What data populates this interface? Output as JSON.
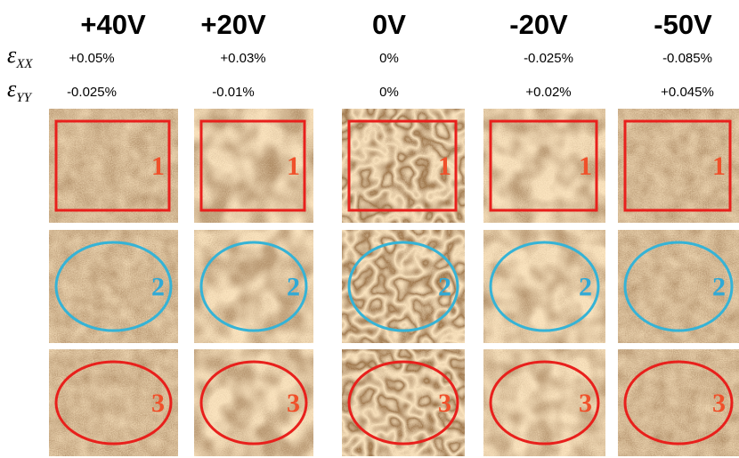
{
  "columns": [
    {
      "voltage": "+40V",
      "exx": "+0.05%",
      "eyy": "-0.025%"
    },
    {
      "voltage": "+20V",
      "exx": "+0.03%",
      "eyy": "-0.01%"
    },
    {
      "voltage": "0V",
      "exx": "0%",
      "eyy": "0%"
    },
    {
      "voltage": "-20V",
      "exx": "-0.025%",
      "eyy": "+0.02%"
    },
    {
      "voltage": "-50V",
      "exx": "-0.085%",
      "eyy": "+0.045%"
    }
  ],
  "strain_labels": {
    "exx": {
      "symbol": "ε",
      "subscript": "XX"
    },
    "eyy": {
      "symbol": "ε",
      "subscript": "YY"
    }
  },
  "regions": [
    "1",
    "2",
    "3"
  ]
}
